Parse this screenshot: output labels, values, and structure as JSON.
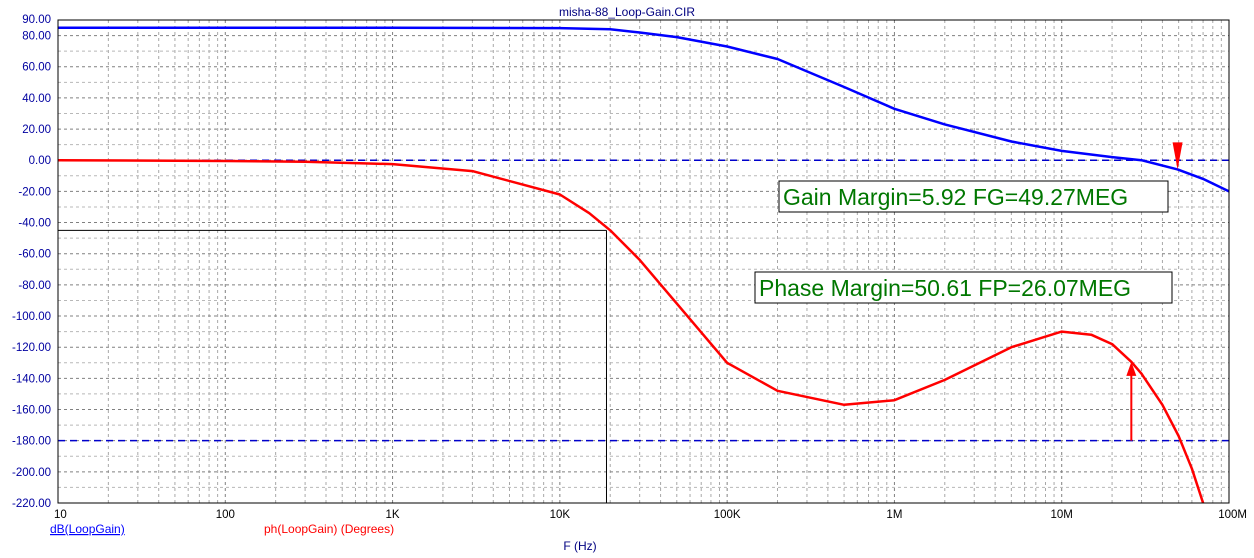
{
  "chart_data": {
    "type": "line",
    "title": "misha-88_Loop-Gain.CIR",
    "xlabel": "F (Hz)",
    "x_scale": "log",
    "xlim": [
      10,
      100000000
    ],
    "ylim": [
      -220,
      90
    ],
    "x_ticks": [
      {
        "value": 10,
        "label": "10"
      },
      {
        "value": 100,
        "label": "100"
      },
      {
        "value": 1000,
        "label": "1K"
      },
      {
        "value": 10000,
        "label": "10K"
      },
      {
        "value": 100000,
        "label": "100K"
      },
      {
        "value": 1000000,
        "label": "1M"
      },
      {
        "value": 10000000,
        "label": "10M"
      },
      {
        "value": 100000000,
        "label": "100M"
      }
    ],
    "y_ticks": [
      {
        "value": 90,
        "label": "90.00"
      },
      {
        "value": 80,
        "label": "80.00"
      },
      {
        "value": 60,
        "label": "60.00"
      },
      {
        "value": 40,
        "label": "40.00"
      },
      {
        "value": 20,
        "label": "20.00"
      },
      {
        "value": 0,
        "label": "0.00"
      },
      {
        "value": -20,
        "label": "-20.00"
      },
      {
        "value": -40,
        "label": "-40.00"
      },
      {
        "value": -60,
        "label": "-60.00"
      },
      {
        "value": -80,
        "label": "-80.00"
      },
      {
        "value": -100,
        "label": "-100.00"
      },
      {
        "value": -120,
        "label": "-120.00"
      },
      {
        "value": -140,
        "label": "-140.00"
      },
      {
        "value": -160,
        "label": "-160.00"
      },
      {
        "value": -180,
        "label": "-180.00"
      },
      {
        "value": -200,
        "label": "-200.00"
      },
      {
        "value": -220,
        "label": "-220.00"
      }
    ],
    "grid": true,
    "series": [
      {
        "name": "dB(LoopGain)",
        "color": "#0000ff",
        "x": [
          10,
          1000,
          10000,
          20000,
          30000,
          50000,
          100000,
          200000,
          500000,
          1000000,
          2000000,
          5000000,
          10000000,
          20000000,
          30000000,
          49270000,
          70000000,
          100000000
        ],
        "y": [
          85,
          85,
          84.8,
          84,
          82,
          79,
          73,
          65,
          47,
          33,
          23,
          12,
          6,
          2,
          0,
          -5.92,
          -12,
          -20
        ]
      },
      {
        "name": "ph(LoopGain) (Degrees)",
        "color": "#ff0000",
        "x": [
          10,
          100,
          300,
          1000,
          3000,
          10000,
          15000,
          20000,
          30000,
          50000,
          100000,
          200000,
          500000,
          1000000,
          2000000,
          5000000,
          10000000,
          15000000,
          20000000,
          26070000,
          30000000,
          40000000,
          50000000,
          60000000,
          70000000
        ],
        "y": [
          0,
          -0.5,
          -1,
          -2.5,
          -7,
          -22,
          -34,
          -45,
          -64,
          -92,
          -130,
          -148,
          -157,
          -154,
          -141,
          -120,
          -110,
          -112,
          -118,
          -129.39,
          -137,
          -157,
          -177,
          -198,
          -220
        ]
      }
    ],
    "reference_lines": [
      {
        "y": 0,
        "color": "#0000cc"
      },
      {
        "y": -180,
        "color": "#0000cc"
      }
    ],
    "cursor": {
      "x": 19000,
      "y": -45
    },
    "annotations": [
      {
        "text": "Gain Margin=5.92 FG=49.27MEG",
        "color": "#007700"
      },
      {
        "text": "Phase Margin=50.61 FP=26.07MEG",
        "color": "#007700"
      }
    ],
    "gain_marker": {
      "x": 49270000,
      "y_from": 5,
      "y_to": -5.92
    },
    "phase_marker": {
      "x": 26070000,
      "y_from": -180,
      "y_to": -129.39
    }
  }
}
